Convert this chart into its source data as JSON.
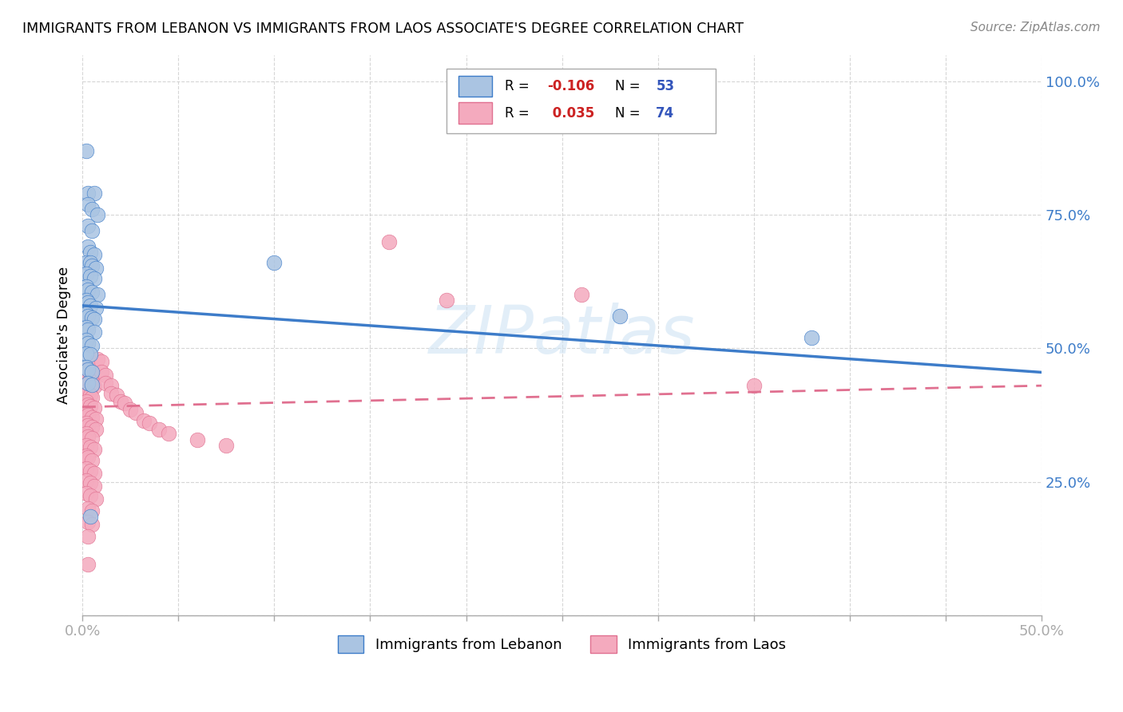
{
  "title": "IMMIGRANTS FROM LEBANON VS IMMIGRANTS FROM LAOS ASSOCIATE'S DEGREE CORRELATION CHART",
  "source": "Source: ZipAtlas.com",
  "xlim": [
    0.0,
    0.5
  ],
  "ylim": [
    0.0,
    1.05
  ],
  "watermark": "ZIPatlas",
  "color_blue": "#aac4e2",
  "color_pink": "#f4aabe",
  "line_blue": "#3d7cc9",
  "line_pink": "#e07090",
  "label1": "Immigrants from Lebanon",
  "label2": "Immigrants from Laos",
  "scatter_blue": [
    [
      0.002,
      0.87
    ],
    [
      0.003,
      0.79
    ],
    [
      0.006,
      0.79
    ],
    [
      0.003,
      0.77
    ],
    [
      0.005,
      0.76
    ],
    [
      0.008,
      0.75
    ],
    [
      0.003,
      0.73
    ],
    [
      0.005,
      0.72
    ],
    [
      0.003,
      0.69
    ],
    [
      0.004,
      0.68
    ],
    [
      0.006,
      0.675
    ],
    [
      0.002,
      0.66
    ],
    [
      0.004,
      0.66
    ],
    [
      0.005,
      0.655
    ],
    [
      0.007,
      0.65
    ],
    [
      0.002,
      0.64
    ],
    [
      0.004,
      0.635
    ],
    [
      0.006,
      0.63
    ],
    [
      0.002,
      0.615
    ],
    [
      0.003,
      0.61
    ],
    [
      0.005,
      0.605
    ],
    [
      0.008,
      0.6
    ],
    [
      0.002,
      0.59
    ],
    [
      0.003,
      0.585
    ],
    [
      0.004,
      0.58
    ],
    [
      0.007,
      0.575
    ],
    [
      0.002,
      0.565
    ],
    [
      0.003,
      0.56
    ],
    [
      0.005,
      0.558
    ],
    [
      0.006,
      0.555
    ],
    [
      0.002,
      0.54
    ],
    [
      0.003,
      0.535
    ],
    [
      0.006,
      0.53
    ],
    [
      0.002,
      0.515
    ],
    [
      0.003,
      0.51
    ],
    [
      0.005,
      0.505
    ],
    [
      0.002,
      0.49
    ],
    [
      0.004,
      0.488
    ],
    [
      0.002,
      0.465
    ],
    [
      0.003,
      0.46
    ],
    [
      0.005,
      0.455
    ],
    [
      0.003,
      0.435
    ],
    [
      0.005,
      0.432
    ],
    [
      0.004,
      0.185
    ],
    [
      0.1,
      0.66
    ],
    [
      0.28,
      0.56
    ],
    [
      0.38,
      0.52
    ]
  ],
  "scatter_pink": [
    [
      0.002,
      0.46
    ],
    [
      0.003,
      0.455
    ],
    [
      0.004,
      0.452
    ],
    [
      0.005,
      0.45
    ],
    [
      0.002,
      0.44
    ],
    [
      0.003,
      0.435
    ],
    [
      0.005,
      0.43
    ],
    [
      0.006,
      0.428
    ],
    [
      0.002,
      0.42
    ],
    [
      0.003,
      0.415
    ],
    [
      0.004,
      0.412
    ],
    [
      0.005,
      0.408
    ],
    [
      0.002,
      0.4
    ],
    [
      0.003,
      0.395
    ],
    [
      0.004,
      0.392
    ],
    [
      0.006,
      0.388
    ],
    [
      0.002,
      0.38
    ],
    [
      0.003,
      0.375
    ],
    [
      0.005,
      0.37
    ],
    [
      0.007,
      0.368
    ],
    [
      0.002,
      0.36
    ],
    [
      0.003,
      0.355
    ],
    [
      0.005,
      0.352
    ],
    [
      0.007,
      0.348
    ],
    [
      0.002,
      0.34
    ],
    [
      0.003,
      0.335
    ],
    [
      0.005,
      0.332
    ],
    [
      0.002,
      0.318
    ],
    [
      0.004,
      0.315
    ],
    [
      0.006,
      0.31
    ],
    [
      0.002,
      0.298
    ],
    [
      0.003,
      0.295
    ],
    [
      0.005,
      0.29
    ],
    [
      0.002,
      0.275
    ],
    [
      0.004,
      0.27
    ],
    [
      0.006,
      0.265
    ],
    [
      0.002,
      0.252
    ],
    [
      0.004,
      0.248
    ],
    [
      0.006,
      0.242
    ],
    [
      0.002,
      0.228
    ],
    [
      0.004,
      0.224
    ],
    [
      0.007,
      0.218
    ],
    [
      0.003,
      0.2
    ],
    [
      0.005,
      0.196
    ],
    [
      0.003,
      0.175
    ],
    [
      0.005,
      0.17
    ],
    [
      0.003,
      0.148
    ],
    [
      0.003,
      0.095
    ],
    [
      0.008,
      0.48
    ],
    [
      0.01,
      0.475
    ],
    [
      0.01,
      0.455
    ],
    [
      0.012,
      0.45
    ],
    [
      0.012,
      0.435
    ],
    [
      0.015,
      0.43
    ],
    [
      0.015,
      0.415
    ],
    [
      0.018,
      0.412
    ],
    [
      0.02,
      0.4
    ],
    [
      0.022,
      0.398
    ],
    [
      0.025,
      0.385
    ],
    [
      0.028,
      0.38
    ],
    [
      0.032,
      0.365
    ],
    [
      0.035,
      0.36
    ],
    [
      0.04,
      0.348
    ],
    [
      0.045,
      0.34
    ],
    [
      0.06,
      0.328
    ],
    [
      0.075,
      0.318
    ],
    [
      0.16,
      0.7
    ],
    [
      0.26,
      0.6
    ],
    [
      0.19,
      0.59
    ],
    [
      0.35,
      0.43
    ]
  ],
  "blue_line_x": [
    0.0,
    0.5
  ],
  "blue_line_y": [
    0.58,
    0.455
  ],
  "pink_line_x": [
    0.0,
    0.5
  ],
  "pink_line_y": [
    0.39,
    0.43
  ]
}
